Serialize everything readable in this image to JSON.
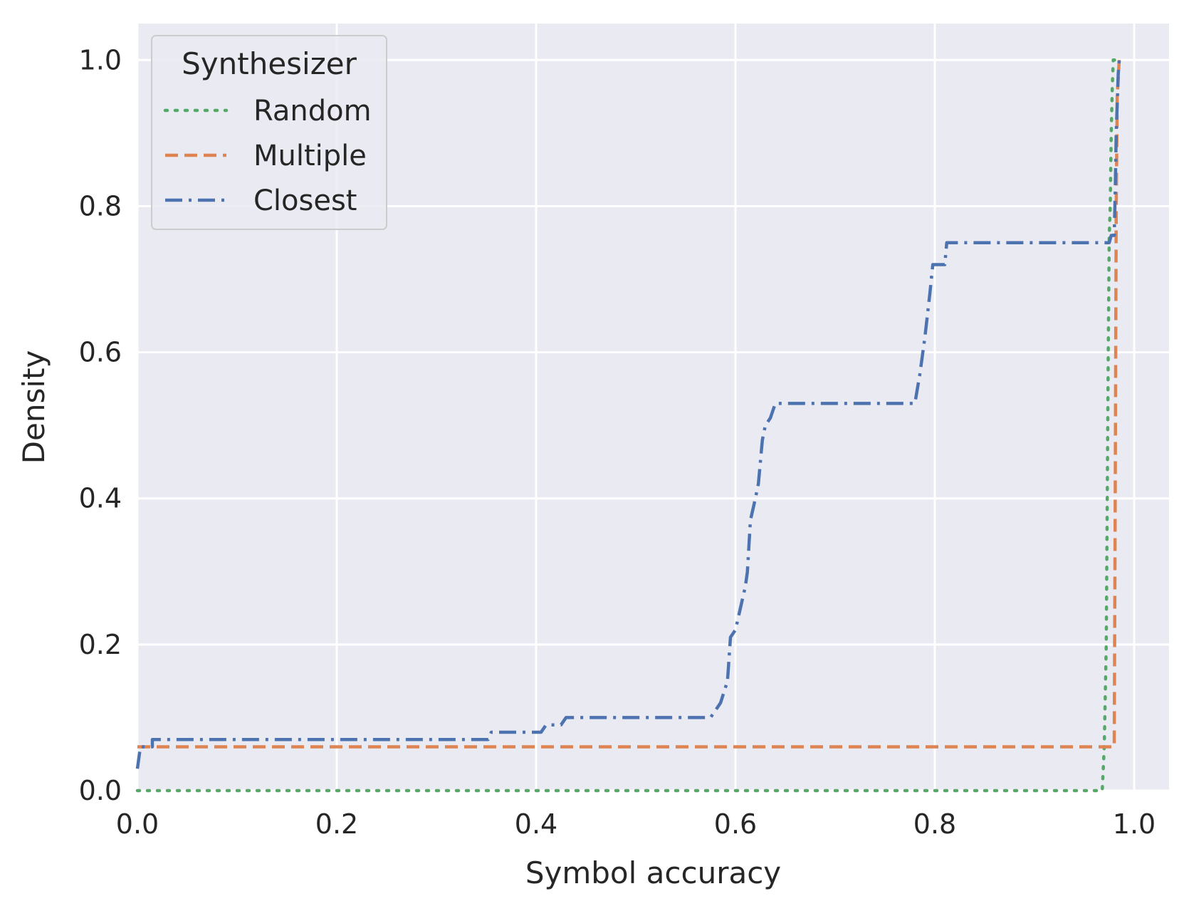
{
  "chart_data": {
    "type": "line",
    "title": "",
    "xlabel": "Symbol accuracy",
    "ylabel": "Density",
    "xlim": [
      0.0,
      1.035
    ],
    "ylim": [
      0.0,
      1.05
    ],
    "xticks": [
      "0.0",
      "0.2",
      "0.4",
      "0.6",
      "0.8",
      "1.0"
    ],
    "yticks": [
      "0.0",
      "0.2",
      "0.4",
      "0.6",
      "0.8",
      "1.0"
    ],
    "grid": true,
    "legend": {
      "title": "Synthesizer",
      "position": "top-left"
    },
    "series": [
      {
        "name": "Random",
        "color": "#55a868",
        "style": "dotted",
        "points": [
          [
            0.0,
            0.0
          ],
          [
            0.968,
            0.0
          ],
          [
            0.97,
            0.06
          ],
          [
            0.972,
            0.2
          ],
          [
            0.973,
            0.4
          ],
          [
            0.974,
            0.6
          ],
          [
            0.975,
            0.76
          ],
          [
            0.976,
            0.8
          ],
          [
            0.977,
            0.9
          ],
          [
            0.978,
            0.96
          ],
          [
            0.979,
            1.0
          ],
          [
            0.985,
            1.0
          ]
        ]
      },
      {
        "name": "Multiple",
        "color": "#dd8452",
        "style": "dashed",
        "points": [
          [
            0.0,
            0.06
          ],
          [
            0.98,
            0.06
          ],
          [
            0.981,
            0.4
          ],
          [
            0.982,
            0.8
          ],
          [
            0.983,
            0.95
          ],
          [
            0.985,
            1.0
          ]
        ]
      },
      {
        "name": "Closest",
        "color": "#4c72b0",
        "style": "dashdot",
        "points": [
          [
            0.0,
            0.03
          ],
          [
            0.003,
            0.06
          ],
          [
            0.015,
            0.06
          ],
          [
            0.015,
            0.07
          ],
          [
            0.352,
            0.07
          ],
          [
            0.355,
            0.08
          ],
          [
            0.405,
            0.08
          ],
          [
            0.41,
            0.09
          ],
          [
            0.425,
            0.09
          ],
          [
            0.43,
            0.1
          ],
          [
            0.575,
            0.1
          ],
          [
            0.585,
            0.12
          ],
          [
            0.592,
            0.15
          ],
          [
            0.595,
            0.21
          ],
          [
            0.6,
            0.22
          ],
          [
            0.605,
            0.25
          ],
          [
            0.61,
            0.28
          ],
          [
            0.612,
            0.3
          ],
          [
            0.615,
            0.37
          ],
          [
            0.62,
            0.4
          ],
          [
            0.623,
            0.42
          ],
          [
            0.627,
            0.48
          ],
          [
            0.63,
            0.5
          ],
          [
            0.635,
            0.51
          ],
          [
            0.64,
            0.53
          ],
          [
            0.78,
            0.53
          ],
          [
            0.785,
            0.57
          ],
          [
            0.79,
            0.62
          ],
          [
            0.795,
            0.68
          ],
          [
            0.798,
            0.72
          ],
          [
            0.81,
            0.72
          ],
          [
            0.812,
            0.75
          ],
          [
            0.975,
            0.75
          ],
          [
            0.977,
            0.76
          ],
          [
            0.98,
            0.76
          ],
          [
            0.981,
            0.82
          ],
          [
            0.982,
            0.9
          ],
          [
            0.983,
            0.94
          ],
          [
            0.984,
            0.98
          ],
          [
            0.985,
            1.0
          ]
        ]
      }
    ]
  }
}
